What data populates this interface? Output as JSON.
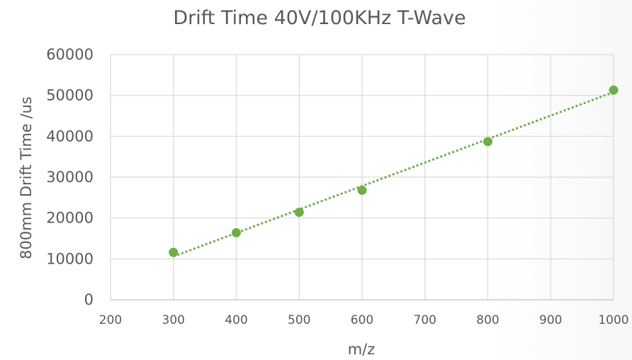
{
  "chart_data": {
    "type": "scatter",
    "title": "Drift Time 40V/100KHz T-Wave",
    "xlabel": "m/z",
    "ylabel": "800mm Drift Time /us",
    "xlim": [
      200,
      1000
    ],
    "ylim": [
      0,
      60000
    ],
    "x_ticks": [
      "200",
      "300",
      "400",
      "500",
      "600",
      "700",
      "800",
      "900",
      "1000"
    ],
    "y_ticks": [
      "0",
      "10000",
      "20000",
      "30000",
      "40000",
      "50000",
      "60000"
    ],
    "x_tick_values": [
      200,
      300,
      400,
      500,
      600,
      700,
      800,
      900,
      1000
    ],
    "y_tick_values": [
      0,
      10000,
      20000,
      30000,
      40000,
      50000,
      60000
    ],
    "grid": true,
    "series": [
      {
        "x": [
          300,
          400,
          500,
          600,
          800,
          1000
        ],
        "y": [
          11600,
          16400,
          21400,
          26800,
          38700,
          51300
        ],
        "color": "#70ad47",
        "marker": "circle"
      }
    ],
    "trendline": {
      "type": "linear",
      "style": "dotted",
      "color": "#70ad47",
      "x": [
        300,
        1000
      ],
      "y": [
        10600,
        50800
      ]
    }
  }
}
